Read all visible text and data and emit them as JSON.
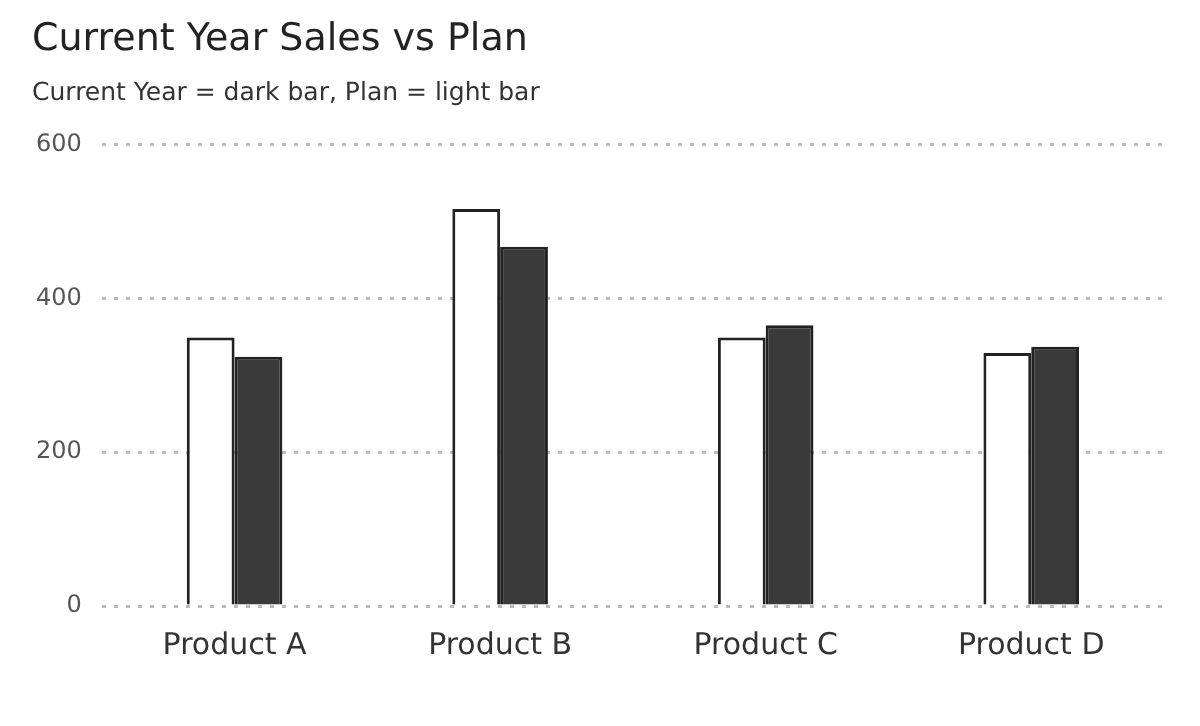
{
  "chart_data": {
    "type": "bar",
    "title": "Current Year Sales vs Plan",
    "subtitle": "Current Year = dark bar, Plan = light bar",
    "categories": [
      "Product A",
      "Product B",
      "Product C",
      "Product D"
    ],
    "series": [
      {
        "color": "#ffffff",
        "values": [
          349,
          516,
          349,
          329
        ]
      },
      {
        "color": "#3a3a3a",
        "values": [
          324,
          467,
          365,
          337
        ]
      }
    ],
    "ylim": [
      0,
      600
    ],
    "yticks": [
      0,
      200,
      400,
      600
    ],
    "grid": "y",
    "legend": false
  }
}
